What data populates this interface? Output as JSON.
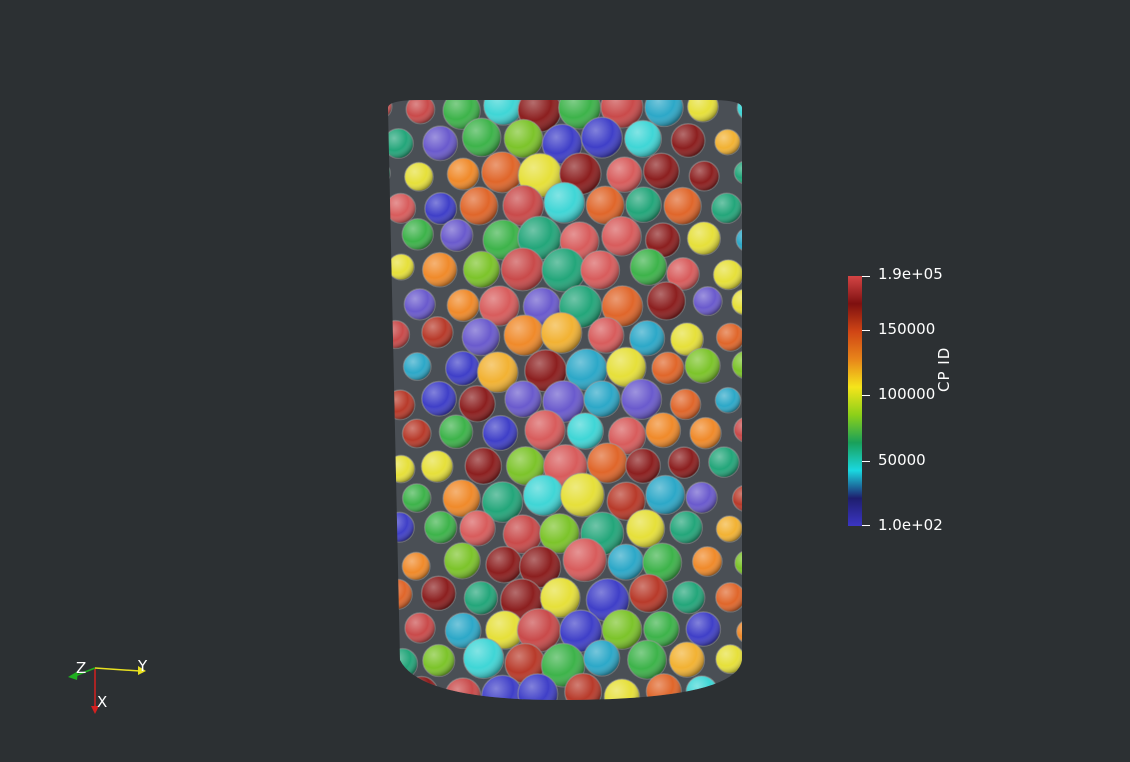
{
  "viewer": {
    "background": "#2c3033"
  },
  "colorbar": {
    "title": "CP ID",
    "tick_labels": [
      "1.9e+05",
      "150000",
      "100000",
      "50000",
      "1.0e+02"
    ],
    "range": [
      100,
      190000
    ],
    "colormap": [
      "#3b35c4",
      "#1e1e6e",
      "#1ad8e0",
      "#19a05a",
      "#8cd019",
      "#f5e51b",
      "#e8851a",
      "#d04515",
      "#7e1010",
      "#d44545"
    ]
  },
  "orientation_axes": {
    "x_label": "X",
    "y_label": "Y",
    "z_label": "Z",
    "x_color": "#d42020",
    "y_color": "#e8e020",
    "z_color": "#20b020"
  },
  "sphere_palette": [
    "#3f3fc8",
    "#6a5acd",
    "#2ca8c8",
    "#3fd6d6",
    "#23a67a",
    "#3db34a",
    "#7cc42a",
    "#e6e03a",
    "#f2b233",
    "#f08a2a",
    "#e0662a",
    "#b83a2a",
    "#8c1f1f",
    "#c94a4a",
    "#d85c5c"
  ]
}
